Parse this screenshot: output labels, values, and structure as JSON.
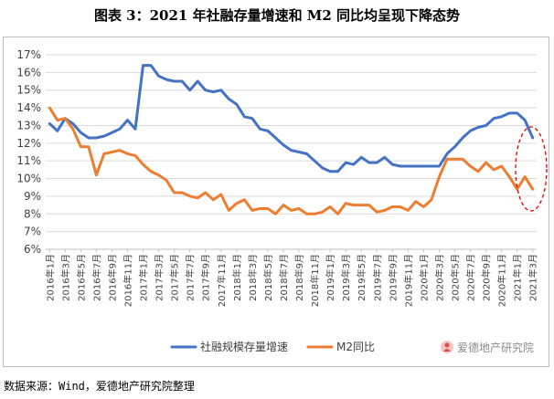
{
  "title": "图表 3：2021 年社融存量增速和 M2 同比均呈现下降态势",
  "source": "数据来源：Wind，爱德地产研究院整理",
  "watermark": {
    "text": "爱德地产研究院",
    "icon": "person-logo-icon"
  },
  "chart_data": {
    "type": "line",
    "xlabel": "",
    "ylabel": "",
    "ylim": [
      6,
      17
    ],
    "y_ticks": [
      "6%",
      "7%",
      "8%",
      "9%",
      "10%",
      "11%",
      "12%",
      "13%",
      "14%",
      "15%",
      "16%",
      "17%"
    ],
    "grid": "horizontal",
    "legend_position": "bottom",
    "x": [
      "2016年1月",
      "2016年2月",
      "2016年3月",
      "2016年4月",
      "2016年5月",
      "2016年6月",
      "2016年7月",
      "2016年8月",
      "2016年9月",
      "2016年10月",
      "2016年11月",
      "2016年12月",
      "2017年1月",
      "2017年2月",
      "2017年3月",
      "2017年4月",
      "2017年5月",
      "2017年6月",
      "2017年7月",
      "2017年8月",
      "2017年9月",
      "2017年10月",
      "2017年11月",
      "2017年12月",
      "2018年1月",
      "2018年2月",
      "2018年3月",
      "2018年4月",
      "2018年5月",
      "2018年6月",
      "2018年7月",
      "2018年8月",
      "2018年9月",
      "2018年10月",
      "2018年11月",
      "2018年12月",
      "2019年1月",
      "2019年2月",
      "2019年3月",
      "2019年4月",
      "2019年5月",
      "2019年6月",
      "2019年7月",
      "2019年8月",
      "2019年9月",
      "2019年10月",
      "2019年11月",
      "2019年12月",
      "2020年1月",
      "2020年2月",
      "2020年3月",
      "2020年4月",
      "2020年5月",
      "2020年6月",
      "2020年7月",
      "2020年8月",
      "2020年9月",
      "2020年10月",
      "2020年11月",
      "2020年12月",
      "2021年1月",
      "2021年2月",
      "2021年3月"
    ],
    "x_tick_labels": [
      "2016年1月",
      "2016年3月",
      "2016年5月",
      "2016年7月",
      "2016年9月",
      "2016年11月",
      "2017年1月",
      "2017年3月",
      "2017年5月",
      "2017年7月",
      "2017年9月",
      "2017年11月",
      "2018年1月",
      "2018年3月",
      "2018年5月",
      "2018年7月",
      "2018年9月",
      "2018年11月",
      "2019年1月",
      "2019年3月",
      "2019年5月",
      "2019年7月",
      "2019年9月",
      "2019年11月",
      "2020年1月",
      "2020年3月",
      "2020年5月",
      "2020年7月",
      "2020年9月",
      "2020年11月",
      "2021年1月",
      "2021年3月"
    ],
    "series": [
      {
        "name": "社融规模存量增速",
        "color": "#4472c4",
        "values": [
          13.1,
          12.7,
          13.4,
          13.1,
          12.6,
          12.3,
          12.3,
          12.4,
          12.6,
          12.8,
          13.3,
          12.8,
          16.4,
          16.4,
          15.8,
          15.6,
          15.5,
          15.5,
          15.0,
          15.5,
          15.0,
          14.9,
          15.0,
          14.5,
          14.2,
          13.5,
          13.4,
          12.8,
          12.7,
          12.3,
          11.9,
          11.6,
          11.5,
          11.4,
          11.0,
          10.6,
          10.4,
          10.4,
          10.9,
          10.8,
          11.2,
          10.9,
          10.9,
          11.2,
          10.8,
          10.7,
          10.7,
          10.7,
          10.7,
          10.7,
          10.7,
          11.4,
          11.8,
          12.3,
          12.7,
          12.9,
          13.0,
          13.4,
          13.5,
          13.7,
          13.7,
          13.3,
          12.3
        ]
      },
      {
        "name": "M2同比",
        "color": "#ed7d31",
        "values": [
          14.0,
          13.3,
          13.4,
          12.8,
          11.8,
          11.8,
          10.2,
          11.4,
          11.5,
          11.6,
          11.4,
          11.3,
          10.8,
          10.4,
          10.2,
          9.9,
          9.2,
          9.2,
          9.0,
          8.9,
          9.2,
          8.8,
          9.1,
          8.2,
          8.6,
          8.8,
          8.2,
          8.3,
          8.3,
          8.0,
          8.5,
          8.2,
          8.3,
          8.0,
          8.0,
          8.1,
          8.4,
          8.0,
          8.6,
          8.5,
          8.5,
          8.5,
          8.1,
          8.2,
          8.4,
          8.4,
          8.2,
          8.7,
          8.4,
          8.8,
          10.1,
          11.1,
          11.1,
          11.1,
          10.7,
          10.4,
          10.9,
          10.5,
          10.7,
          10.1,
          9.4,
          10.1,
          9.4
        ]
      }
    ]
  }
}
